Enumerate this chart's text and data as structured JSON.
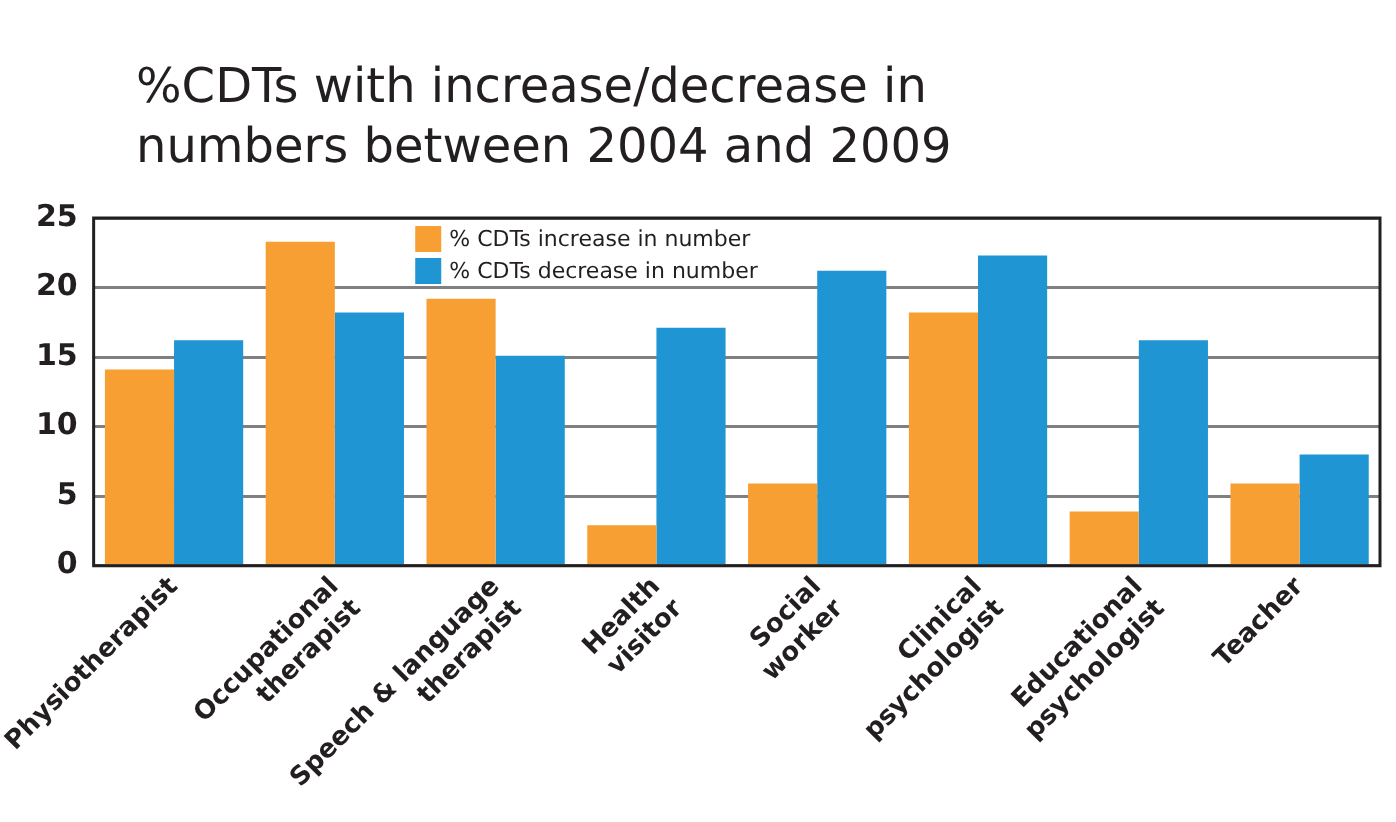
{
  "chart_data": {
    "type": "bar",
    "title": "%CDTs with increase/decrease in numbers between 2004 and 2009",
    "categories": [
      "Physiotherapist",
      "Occupational therapist",
      "Speech & language therapist",
      "Health visitor",
      "Social worker",
      "Clinical psychologist",
      "Educational psychologist",
      "Teacher"
    ],
    "series": [
      {
        "name": "% CDTs increase in number",
        "color": "#f79f32",
        "values": [
          14.1,
          23.3,
          19.2,
          2.9,
          5.9,
          18.2,
          3.9,
          5.9
        ]
      },
      {
        "name": "% CDTs decrease in number",
        "color": "#1f95d3",
        "values": [
          16.2,
          18.2,
          15.1,
          17.1,
          21.2,
          22.3,
          16.2,
          8.0
        ]
      }
    ],
    "ylim": [
      0,
      25
    ],
    "yticks": [
      0,
      5,
      10,
      15,
      20,
      25
    ],
    "grid": "y",
    "legend": "top"
  }
}
